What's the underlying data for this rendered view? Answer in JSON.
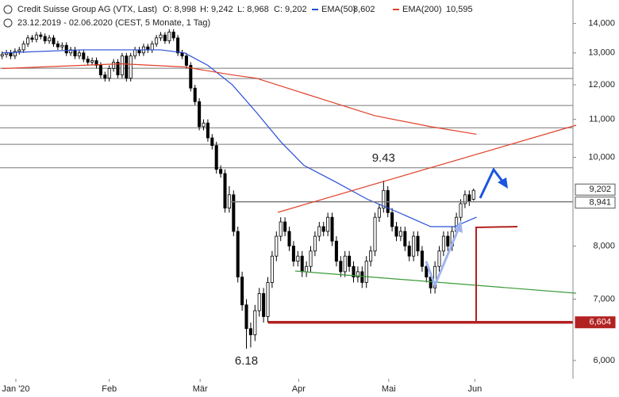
{
  "chart_data": {
    "type": "candlestick",
    "title": "Credit Suisse Group AG (VTX, Last)",
    "subtitle": "23.12.2019 - 02.06.2020  (CEST, 5 Monate, 1 Tag)",
    "ohlc_labels": [
      "O: 8,998",
      "H: 9,242",
      "L: 8,968",
      "C: 9,202"
    ],
    "log_scale": true,
    "xlim": [
      -0.5,
      133.2
    ],
    "ylim": [
      5.73,
      14.85
    ],
    "xticks": [
      {
        "value": 3.2,
        "label": "Jan '20"
      },
      {
        "value": 25,
        "label": "Feb"
      },
      {
        "value": 46.2,
        "label": "Mär"
      },
      {
        "value": 69.2,
        "label": "Apr"
      },
      {
        "value": 90.2,
        "label": "Mai"
      },
      {
        "value": 110.3,
        "label": "Jun"
      }
    ],
    "yticks": [
      {
        "value": 6,
        "label": "6,000"
      },
      {
        "value": 7,
        "label": "7,000"
      },
      {
        "value": 8,
        "label": "8,000"
      },
      {
        "value": 10,
        "label": "10,000"
      },
      {
        "value": 11,
        "label": "11,000"
      },
      {
        "value": 12,
        "label": "12,000"
      },
      {
        "value": 13,
        "label": "13,000"
      },
      {
        "value": 14,
        "label": "14,000"
      }
    ],
    "open": [
      12.9,
      12.95,
      13.0,
      12.9,
      13.05,
      13.1,
      13.3,
      13.5,
      13.45,
      13.6,
      13.55,
      13.4,
      13.5,
      13.3,
      13.2,
      13.25,
      13.0,
      13.1,
      12.9,
      13.0,
      12.8,
      12.7,
      12.75,
      12.6,
      12.3,
      12.2,
      12.5,
      12.7,
      12.3,
      12.9,
      12.2,
      12.9,
      13.1,
      13.0,
      13.2,
      13.1,
      13.3,
      13.5,
      13.6,
      13.4,
      13.7,
      13.5,
      13.0,
      12.9,
      12.6,
      11.9,
      11.5,
      10.8,
      10.9,
      10.5,
      10.3,
      9.7,
      9.6,
      8.8,
      9.1,
      8.3,
      7.4,
      6.9,
      6.5,
      6.4,
      6.8,
      7.1,
      6.7,
      7.3,
      7.8,
      8.2,
      8.5,
      8.3,
      8.0,
      7.7,
      7.8,
      7.5,
      7.6,
      7.9,
      8.2,
      8.4,
      8.3,
      8.6,
      8.1,
      7.7,
      7.5,
      7.8,
      7.6,
      7.4,
      7.5,
      7.3,
      7.7,
      7.9,
      8.6,
      8.8,
      9.2,
      8.7,
      8.4,
      8.2,
      8.3,
      8.0,
      7.8,
      8.2,
      7.9,
      7.6,
      7.4,
      7.2,
      7.6,
      7.9,
      8.2,
      8.0,
      8.3,
      8.6,
      8.9,
      9.1,
      8.998
    ],
    "high": [
      13.05,
      13.1,
      13.1,
      13.15,
      13.2,
      13.4,
      13.6,
      13.6,
      13.7,
      13.7,
      13.65,
      13.6,
      13.6,
      13.4,
      13.35,
      13.35,
      13.2,
      13.2,
      13.1,
      13.1,
      12.9,
      12.85,
      12.85,
      12.7,
      12.4,
      12.6,
      12.8,
      12.8,
      13.0,
      13.0,
      13.0,
      13.2,
      13.2,
      13.3,
      13.3,
      13.4,
      13.6,
      13.7,
      13.7,
      13.8,
      13.8,
      13.6,
      13.1,
      13.0,
      12.7,
      12.0,
      11.6,
      11.0,
      11.0,
      10.6,
      10.4,
      9.8,
      9.7,
      9.3,
      9.2,
      8.4,
      7.5,
      7.0,
      6.6,
      6.9,
      7.2,
      7.2,
      7.4,
      7.9,
      8.3,
      8.6,
      8.6,
      8.4,
      8.1,
      7.9,
      7.9,
      7.7,
      8.0,
      8.3,
      8.5,
      8.5,
      8.7,
      8.7,
      8.2,
      7.8,
      7.9,
      7.9,
      7.7,
      7.6,
      7.6,
      7.8,
      8.0,
      8.7,
      8.9,
      9.43,
      9.3,
      8.8,
      8.5,
      8.4,
      8.4,
      8.1,
      8.3,
      8.3,
      8.0,
      7.7,
      7.5,
      7.7,
      8.0,
      8.3,
      8.3,
      8.4,
      8.7,
      9.0,
      9.2,
      9.2,
      9.242
    ],
    "low": [
      12.8,
      12.85,
      12.8,
      12.8,
      12.95,
      13.0,
      13.2,
      13.35,
      13.35,
      13.45,
      13.3,
      13.3,
      13.2,
      13.1,
      13.1,
      12.9,
      12.9,
      12.8,
      12.8,
      12.7,
      12.6,
      12.6,
      12.5,
      12.2,
      12.1,
      12.1,
      12.4,
      12.2,
      12.2,
      12.1,
      12.1,
      12.8,
      12.9,
      12.9,
      13.0,
      13.0,
      13.2,
      13.4,
      13.3,
      13.3,
      13.4,
      12.9,
      12.8,
      12.5,
      11.8,
      11.4,
      10.7,
      10.7,
      10.4,
      10.2,
      9.6,
      9.5,
      8.7,
      8.7,
      8.2,
      7.3,
      6.8,
      6.18,
      6.2,
      6.3,
      6.7,
      6.6,
      6.6,
      7.2,
      7.7,
      8.1,
      8.2,
      7.9,
      7.6,
      7.6,
      7.4,
      7.4,
      7.5,
      7.8,
      8.1,
      8.2,
      8.2,
      8.0,
      7.6,
      7.4,
      7.4,
      7.5,
      7.3,
      7.3,
      7.2,
      7.2,
      7.6,
      7.8,
      8.5,
      8.7,
      8.6,
      8.3,
      8.1,
      8.1,
      7.9,
      7.7,
      7.7,
      7.8,
      7.5,
      7.3,
      7.1,
      7.1,
      7.5,
      7.8,
      7.9,
      7.9,
      8.2,
      8.5,
      8.8,
      8.85,
      8.968
    ],
    "close": [
      12.95,
      13.0,
      12.9,
      13.05,
      13.1,
      13.3,
      13.5,
      13.45,
      13.6,
      13.55,
      13.4,
      13.5,
      13.3,
      13.2,
      13.25,
      13.0,
      13.1,
      12.9,
      13.0,
      12.8,
      12.7,
      12.75,
      12.6,
      12.3,
      12.2,
      12.5,
      12.7,
      12.3,
      12.9,
      12.2,
      12.9,
      13.1,
      13.0,
      13.2,
      13.1,
      13.3,
      13.5,
      13.6,
      13.4,
      13.7,
      13.5,
      13.0,
      12.9,
      12.6,
      11.9,
      11.5,
      10.8,
      10.9,
      10.5,
      10.3,
      9.7,
      9.6,
      8.8,
      9.1,
      8.3,
      7.4,
      6.9,
      6.5,
      6.4,
      6.8,
      7.1,
      6.7,
      7.3,
      7.8,
      8.2,
      8.5,
      8.3,
      8.0,
      7.7,
      7.8,
      7.5,
      7.6,
      7.9,
      8.2,
      8.4,
      8.3,
      8.6,
      8.1,
      7.7,
      7.5,
      7.8,
      7.6,
      7.4,
      7.5,
      7.3,
      7.7,
      7.9,
      8.6,
      8.8,
      9.2,
      8.7,
      8.4,
      8.2,
      8.3,
      8.0,
      7.8,
      8.2,
      7.9,
      7.6,
      7.4,
      7.2,
      7.6,
      7.9,
      8.2,
      8.0,
      8.3,
      8.6,
      8.9,
      9.1,
      8.95,
      9.202
    ],
    "series": [
      {
        "name": "EMA(50)",
        "color": "#2a4fd8",
        "last_label": "8,602",
        "x": [
          0,
          18.5,
          37,
          42.6,
          48,
          53.7,
          59.3,
          65,
          70.4,
          77.8,
          85.2,
          92.6,
          100,
          105.5,
          110.7
        ],
        "values": [
          13.0,
          13.1,
          13.1,
          13.0,
          12.6,
          12.0,
          11.2,
          10.4,
          9.8,
          9.4,
          9.0,
          8.7,
          8.4,
          8.4,
          8.602
        ]
      },
      {
        "name": "EMA(200)",
        "color": "#e0402a",
        "last_label": "10,595",
        "x": [
          0,
          18.5,
          27.8,
          42.6,
          53.7,
          59.3,
          74,
          87,
          100,
          110.7
        ],
        "values": [
          12.5,
          12.6,
          12.65,
          12.55,
          12.3,
          12.2,
          11.6,
          11.1,
          10.8,
          10.595
        ]
      }
    ],
    "levels": [
      12.51,
      12.19,
      11.39,
      10.77,
      10.33,
      9.74
    ],
    "price_tags": [
      {
        "value": 9.202,
        "label": "9,202"
      },
      {
        "value": 8.941,
        "label": "8,941"
      },
      {
        "value": 6.604,
        "label": "6,604"
      }
    ],
    "annotations": [
      {
        "text": "9.43",
        "x": 89,
        "y": 9.43
      },
      {
        "text": "6.18",
        "x": 57,
        "y": 6.18
      }
    ]
  }
}
